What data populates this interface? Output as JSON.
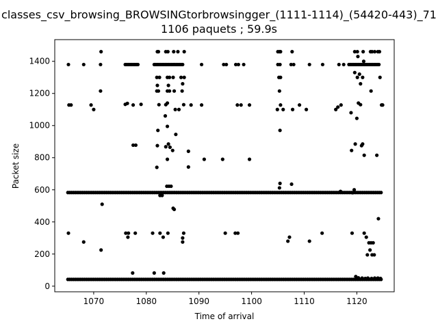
{
  "chart_data": {
    "type": "scatter",
    "title": "classes_csv_browsing_BROWSINGtorbrowsingger_(1111-1114)_(54420-443)_71",
    "subtitle": "1106 paquets ; 59.9s",
    "xlabel": "Time of arrival",
    "ylabel": "Packet size",
    "xlim": [
      1062.6,
      1127.1
    ],
    "ylim": [
      -35,
      1535
    ],
    "xticks": [
      1070,
      1080,
      1090,
      1100,
      1110,
      1120
    ],
    "yticks": [
      0,
      200,
      400,
      600,
      800,
      1000,
      1200,
      1400
    ],
    "grid": false,
    "marker_color": "#000000",
    "series": [
      {
        "bands": [
          {
            "y": 42,
            "x_start": 1065.1,
            "x_end": 1124.9,
            "step": 0.35
          },
          {
            "y": 583,
            "x_start": 1065.1,
            "x_end": 1124.9,
            "step": 0.35
          },
          {
            "y": 1380,
            "x_start": 1076.0,
            "x_end": 1078.5,
            "step": 0.3
          },
          {
            "y": 1380,
            "x_start": 1081.5,
            "x_end": 1087.0,
            "step": 0.3
          },
          {
            "y": 1380,
            "x_start": 1118.5,
            "x_end": 1124.3,
            "step": 0.3
          }
        ],
        "points": [
          [
            1065.2,
            1380
          ],
          [
            1065.3,
            1128
          ],
          [
            1065.7,
            1128
          ],
          [
            1068.1,
            1380
          ],
          [
            1069.5,
            1128
          ],
          [
            1070.0,
            1100
          ],
          [
            1071.3,
            1380
          ],
          [
            1071.4,
            1460
          ],
          [
            1071.3,
            1215
          ],
          [
            1071.6,
            510
          ],
          [
            1071.4,
            225
          ],
          [
            1065.2,
            330
          ],
          [
            1068.1,
            275
          ],
          [
            1076.0,
            1132
          ],
          [
            1076.4,
            1138
          ],
          [
            1077.5,
            1128
          ],
          [
            1079.0,
            1132
          ],
          [
            1078.0,
            878
          ],
          [
            1077.5,
            878
          ],
          [
            1076.1,
            330
          ],
          [
            1076.6,
            330
          ],
          [
            1076.5,
            305
          ],
          [
            1077.9,
            330
          ],
          [
            1077.4,
            82
          ],
          [
            1081.2,
            330
          ],
          [
            1081.5,
            82
          ],
          [
            1082.1,
            1460
          ],
          [
            1082.3,
            1460
          ],
          [
            1083.7,
            1460
          ],
          [
            1084.1,
            1460
          ],
          [
            1085.2,
            1460
          ],
          [
            1086.0,
            1460
          ],
          [
            1087.2,
            1460
          ],
          [
            1082.0,
            1300
          ],
          [
            1082.5,
            1300
          ],
          [
            1084.0,
            1300
          ],
          [
            1084.4,
            1300
          ],
          [
            1085.1,
            1300
          ],
          [
            1086.6,
            1300
          ],
          [
            1087.2,
            1300
          ],
          [
            1082.0,
            1215
          ],
          [
            1082.3,
            1215
          ],
          [
            1084.0,
            1215
          ],
          [
            1084.4,
            1215
          ],
          [
            1085.3,
            1215
          ],
          [
            1086.8,
            1215
          ],
          [
            1082.1,
            1250
          ],
          [
            1084.2,
            1250
          ],
          [
            1086.9,
            1260
          ],
          [
            1082.4,
            1130
          ],
          [
            1083.7,
            1130
          ],
          [
            1084.0,
            1140
          ],
          [
            1085.5,
            1100
          ],
          [
            1086.2,
            1100
          ],
          [
            1087.1,
            1130
          ],
          [
            1088.5,
            1128
          ],
          [
            1090.5,
            1128
          ],
          [
            1082.2,
            970
          ],
          [
            1083.6,
            1060
          ],
          [
            1084.0,
            995
          ],
          [
            1085.6,
            945
          ],
          [
            1082.1,
            875
          ],
          [
            1083.7,
            868
          ],
          [
            1084.2,
            885
          ],
          [
            1084.5,
            865
          ],
          [
            1085.0,
            845
          ],
          [
            1088.0,
            840
          ],
          [
            1082.0,
            740
          ],
          [
            1084.0,
            790
          ],
          [
            1088.0,
            742
          ],
          [
            1083.9,
            622
          ],
          [
            1084.3,
            622
          ],
          [
            1084.7,
            622
          ],
          [
            1083.0,
            565
          ],
          [
            1082.6,
            565
          ],
          [
            1085.1,
            485
          ],
          [
            1085.3,
            478
          ],
          [
            1082.6,
            330
          ],
          [
            1083.2,
            305
          ],
          [
            1084.1,
            330
          ],
          [
            1086.9,
            300
          ],
          [
            1087.1,
            330
          ],
          [
            1086.9,
            275
          ],
          [
            1083.3,
            82
          ],
          [
            1090.5,
            1380
          ],
          [
            1091.0,
            790
          ],
          [
            1094.5,
            790
          ],
          [
            1094.7,
            1380
          ],
          [
            1095.2,
            1380
          ],
          [
            1097.0,
            1380
          ],
          [
            1097.5,
            1380
          ],
          [
            1097.3,
            1128
          ],
          [
            1098.0,
            1128
          ],
          [
            1099.6,
            1128
          ],
          [
            1099.6,
            790
          ],
          [
            1098.5,
            1380
          ],
          [
            1095.0,
            330
          ],
          [
            1096.9,
            330
          ],
          [
            1097.4,
            330
          ],
          [
            1105.0,
            1460
          ],
          [
            1105.3,
            1460
          ],
          [
            1105.5,
            1460
          ],
          [
            1107.7,
            1460
          ],
          [
            1105.0,
            1380
          ],
          [
            1105.4,
            1380
          ],
          [
            1105.2,
            1300
          ],
          [
            1105.5,
            1300
          ],
          [
            1105.3,
            1215
          ],
          [
            1104.9,
            1100
          ],
          [
            1105.5,
            1128
          ],
          [
            1106.0,
            1100
          ],
          [
            1107.8,
            1100
          ],
          [
            1109.1,
            1128
          ],
          [
            1110.4,
            1100
          ],
          [
            1107.5,
            1380
          ],
          [
            1108.0,
            1380
          ],
          [
            1111.0,
            1380
          ],
          [
            1113.5,
            1380
          ],
          [
            1105.4,
            970
          ],
          [
            1105.4,
            640
          ],
          [
            1105.3,
            612
          ],
          [
            1107.6,
            635
          ],
          [
            1107.2,
            305
          ],
          [
            1106.9,
            280
          ],
          [
            1111.0,
            280
          ],
          [
            1113.4,
            330
          ],
          [
            1116.0,
            1100
          ],
          [
            1116.4,
            1115
          ],
          [
            1117.0,
            1128
          ],
          [
            1116.6,
            1380
          ],
          [
            1117.5,
            1380
          ],
          [
            1119.6,
            1460
          ],
          [
            1120.1,
            1460
          ],
          [
            1121.2,
            1460
          ],
          [
            1122.6,
            1460
          ],
          [
            1122.9,
            1460
          ],
          [
            1123.4,
            1460
          ],
          [
            1124.0,
            1460
          ],
          [
            1124.3,
            1460
          ],
          [
            1120.2,
            1430
          ],
          [
            1121.3,
            1400
          ],
          [
            1119.6,
            1330
          ],
          [
            1120.1,
            1300
          ],
          [
            1120.5,
            1320
          ],
          [
            1121.1,
            1300
          ],
          [
            1120.7,
            1260
          ],
          [
            1124.4,
            1300
          ],
          [
            1122.7,
            1215
          ],
          [
            1120.3,
            1140
          ],
          [
            1120.7,
            1130
          ],
          [
            1118.9,
            1080
          ],
          [
            1120.0,
            1045
          ],
          [
            1124.7,
            1128
          ],
          [
            1124.9,
            1128
          ],
          [
            1119.7,
            885
          ],
          [
            1120.9,
            875
          ],
          [
            1121.1,
            885
          ],
          [
            1121.4,
            815
          ],
          [
            1123.8,
            815
          ],
          [
            1119.0,
            845
          ],
          [
            1119.2,
            582
          ],
          [
            1119.5,
            600
          ],
          [
            1116.9,
            590
          ],
          [
            1124.1,
            420
          ],
          [
            1119.1,
            330
          ],
          [
            1121.4,
            330
          ],
          [
            1121.8,
            305
          ],
          [
            1122.3,
            270
          ],
          [
            1122.7,
            270
          ],
          [
            1123.1,
            270
          ],
          [
            1122.0,
            195
          ],
          [
            1122.5,
            225
          ],
          [
            1122.9,
            195
          ],
          [
            1123.3,
            195
          ],
          [
            1119.8,
            60
          ],
          [
            1120.3,
            52
          ],
          [
            1121.0,
            50
          ],
          [
            1121.6,
            48
          ],
          [
            1122.1,
            50
          ],
          [
            1122.8,
            48
          ],
          [
            1123.4,
            50
          ],
          [
            1124.0,
            50
          ],
          [
            1124.5,
            48
          ]
        ]
      }
    ]
  }
}
